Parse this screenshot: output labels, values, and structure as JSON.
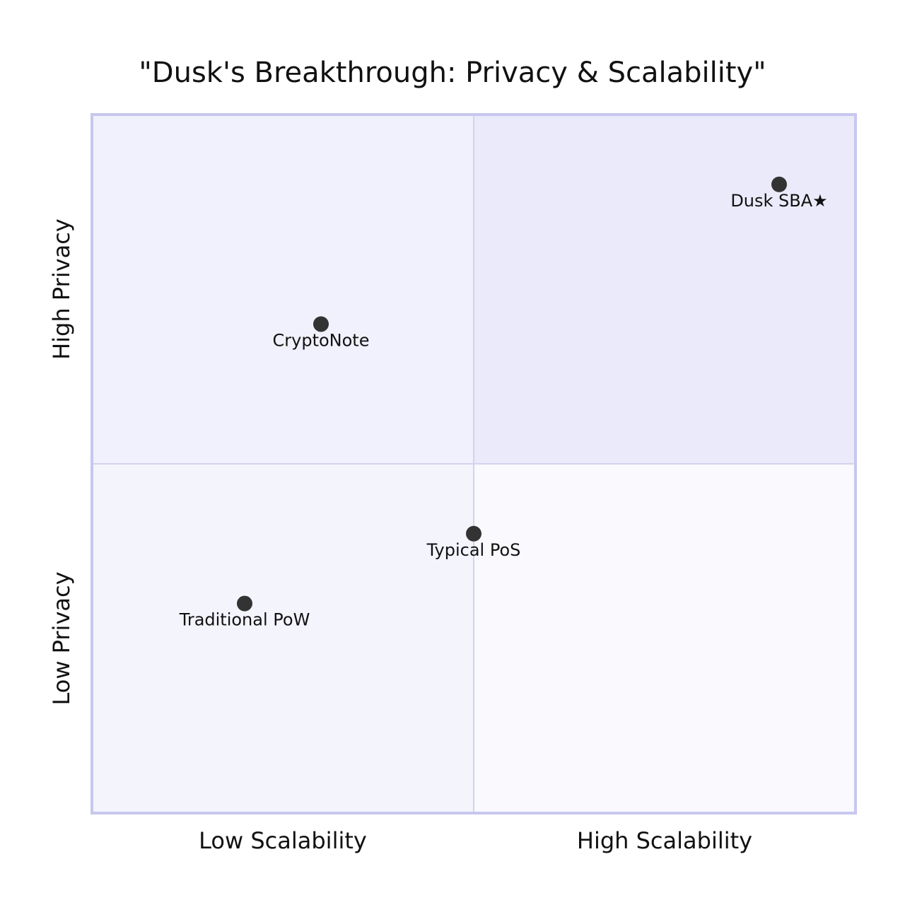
{
  "chart_data": {
    "type": "scatter",
    "title": "\"Dusk's Breakthrough: Privacy & Scalability\"",
    "x_axis": {
      "low_label": "Low Scalability",
      "high_label": "High Scalability",
      "range": [
        0,
        1
      ]
    },
    "y_axis": {
      "low_label": "Low Privacy",
      "high_label": "High Privacy",
      "range": [
        0,
        1
      ]
    },
    "quadrants": [
      {
        "position": "top-right",
        "fill": "#eaeafa"
      },
      {
        "position": "top-left",
        "fill": "#f1f1fd"
      },
      {
        "position": "bottom-left",
        "fill": "#f4f4fd"
      },
      {
        "position": "bottom-right",
        "fill": "#f9f9fe"
      }
    ],
    "points": [
      {
        "name": "Dusk SBA★",
        "x": 0.9,
        "y": 0.9
      },
      {
        "name": "CryptoNote",
        "x": 0.3,
        "y": 0.7
      },
      {
        "name": "Typical PoS",
        "x": 0.5,
        "y": 0.4
      },
      {
        "name": "Traditional PoW",
        "x": 0.2,
        "y": 0.3
      }
    ],
    "colors": {
      "border": "#c7c7ee",
      "divider": "#d3d3ee",
      "point": "#333333",
      "text": "#111111"
    }
  }
}
